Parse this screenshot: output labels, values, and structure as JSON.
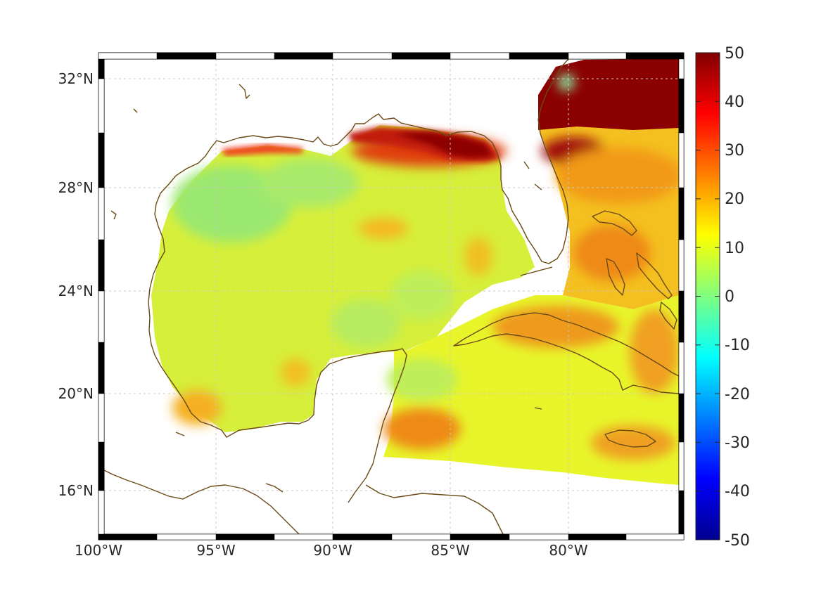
{
  "map": {
    "lon_labels": [
      "100°W",
      "95°W",
      "90°W",
      "85°W",
      "80°W"
    ],
    "lat_labels": [
      "32°N",
      "28°N",
      "24°N",
      "20°N",
      "16°N"
    ],
    "lon_range": [
      -100,
      -75
    ],
    "lat_range": [
      14.0,
      33.0
    ],
    "grid": true,
    "frame": "black-white checkered border"
  },
  "colorbar": {
    "colormap": "jet",
    "range": [
      -50,
      50
    ],
    "tick_labels": [
      "50",
      "40",
      "30",
      "20",
      "10",
      "0",
      "-10",
      "-20",
      "-30",
      "-40",
      "-50"
    ]
  },
  "colors": {
    "coastline": "#6b4a16",
    "grid": "#bfbfbf",
    "frame_dark": "#000000",
    "frame_light": "#ffffff"
  }
}
